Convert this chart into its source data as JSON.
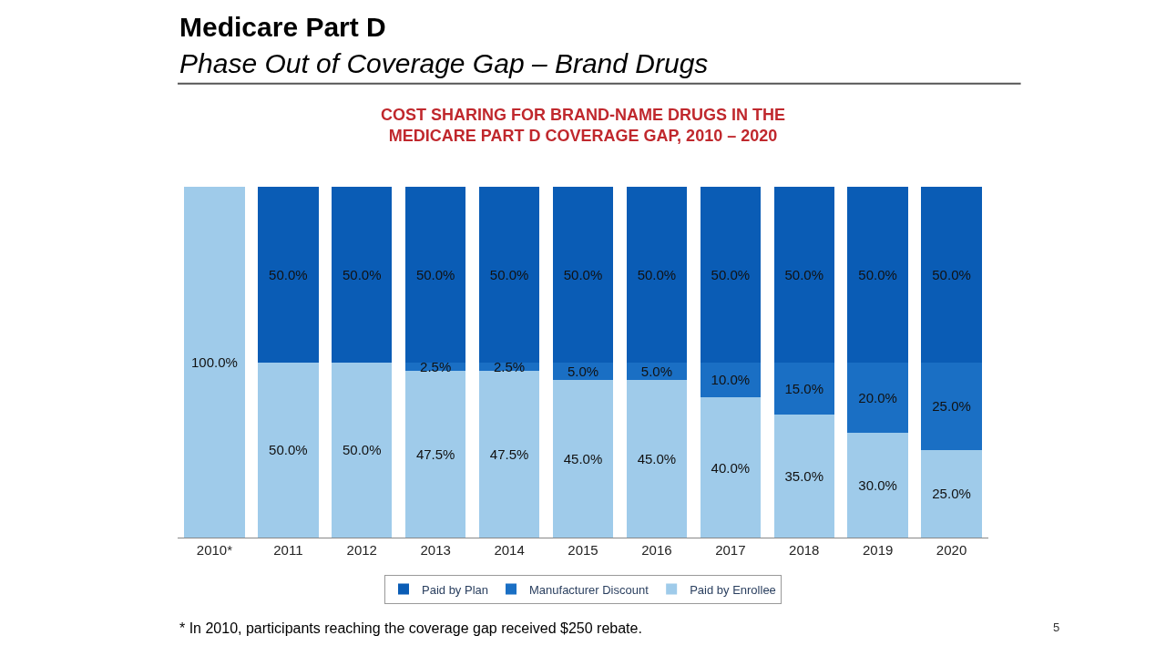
{
  "chart_data": {
    "type": "bar",
    "stacked": true,
    "title": "Medicare Part D",
    "subtitle": "Phase Out of Coverage Gap – Brand Drugs",
    "categories": [
      "2010*",
      "2011",
      "2012",
      "2013",
      "2014",
      "2015",
      "2016",
      "2017",
      "2018",
      "2019",
      "2020"
    ],
    "series": [
      {
        "name": "Paid by Enrollee",
        "color": "#9fcbea",
        "values": [
          100,
          50,
          50,
          47.5,
          47.5,
          45,
          45,
          40,
          35,
          30,
          25
        ],
        "value_labels": [
          "100.0%",
          "50.0%",
          "50.0%",
          "47.5%",
          "47.5%",
          "45.0%",
          "45.0%",
          "40.0%",
          "35.0%",
          "30.0%",
          "25.0%"
        ]
      },
      {
        "name": "Manufacturer Discount",
        "color": "#1a6fc4",
        "values": [
          0,
          0,
          0,
          2.5,
          2.5,
          5,
          5,
          10,
          15,
          20,
          25
        ],
        "value_labels": [
          null,
          null,
          null,
          "2.5%",
          "2.5%",
          "5.0%",
          "5.0%",
          "10.0%",
          "15.0%",
          "20.0%",
          "25.0%"
        ]
      },
      {
        "name": "Paid by Plan",
        "color": "#0a5cb5",
        "values": [
          0,
          50,
          50,
          50,
          50,
          50,
          50,
          50,
          50,
          50,
          50
        ],
        "value_labels": [
          null,
          "50.0%",
          "50.0%",
          "50.0%",
          "50.0%",
          "50.0%",
          "50.0%",
          "50.0%",
          "50.0%",
          "50.0%",
          "50.0%"
        ]
      }
    ],
    "legend": "bottom",
    "annotations": [
      "COST SHARING FOR BRAND-NAME DRUGS IN THE\nMEDICARE PART D COVERAGE GAP, 2010 – 2020",
      "* In 2010, participants reaching the coverage gap received $250 rebate.",
      "5"
    ]
  }
}
